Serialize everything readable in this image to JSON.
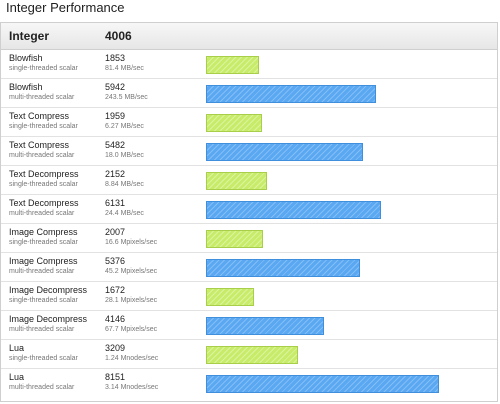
{
  "page": {
    "section_title": "Integer Performance"
  },
  "table": {
    "header_label": "Integer",
    "header_score": "4006"
  },
  "chart_data": {
    "type": "bar",
    "title": "",
    "xlabel": "",
    "ylabel": "",
    "ylim": [
      0,
      9000
    ],
    "colors": {
      "single-threaded scalar": "#c8ec6a",
      "multi-threaded scalar": "#5aa8f2"
    },
    "rows": [
      {
        "name": "Blowfish",
        "mode": "single-threaded scalar",
        "score": 1853,
        "score_text": "1853",
        "rate": "81.4 MB/sec"
      },
      {
        "name": "Blowfish",
        "mode": "multi-threaded scalar",
        "score": 5942,
        "score_text": "5942",
        "rate": "243.5 MB/sec"
      },
      {
        "name": "Text Compress",
        "mode": "single-threaded scalar",
        "score": 1959,
        "score_text": "1959",
        "rate": "6.27 MB/sec"
      },
      {
        "name": "Text Compress",
        "mode": "multi-threaded scalar",
        "score": 5482,
        "score_text": "5482",
        "rate": "18.0 MB/sec"
      },
      {
        "name": "Text Decompress",
        "mode": "single-threaded scalar",
        "score": 2152,
        "score_text": "2152",
        "rate": "8.84 MB/sec"
      },
      {
        "name": "Text Decompress",
        "mode": "multi-threaded scalar",
        "score": 6131,
        "score_text": "6131",
        "rate": "24.4 MB/sec"
      },
      {
        "name": "Image Compress",
        "mode": "single-threaded scalar",
        "score": 2007,
        "score_text": "2007",
        "rate": "16.6 Mpixels/sec"
      },
      {
        "name": "Image Compress",
        "mode": "multi-threaded scalar",
        "score": 5376,
        "score_text": "5376",
        "rate": "45.2 Mpixels/sec"
      },
      {
        "name": "Image Decompress",
        "mode": "single-threaded scalar",
        "score": 1672,
        "score_text": "1672",
        "rate": "28.1 Mpixels/sec"
      },
      {
        "name": "Image Decompress",
        "mode": "multi-threaded scalar",
        "score": 4146,
        "score_text": "4146",
        "rate": "67.7 Mpixels/sec"
      },
      {
        "name": "Lua",
        "mode": "single-threaded scalar",
        "score": 3209,
        "score_text": "3209",
        "rate": "1.24 Mnodes/sec"
      },
      {
        "name": "Lua",
        "mode": "multi-threaded scalar",
        "score": 8151,
        "score_text": "8151",
        "rate": "3.14 Mnodes/sec"
      }
    ]
  }
}
